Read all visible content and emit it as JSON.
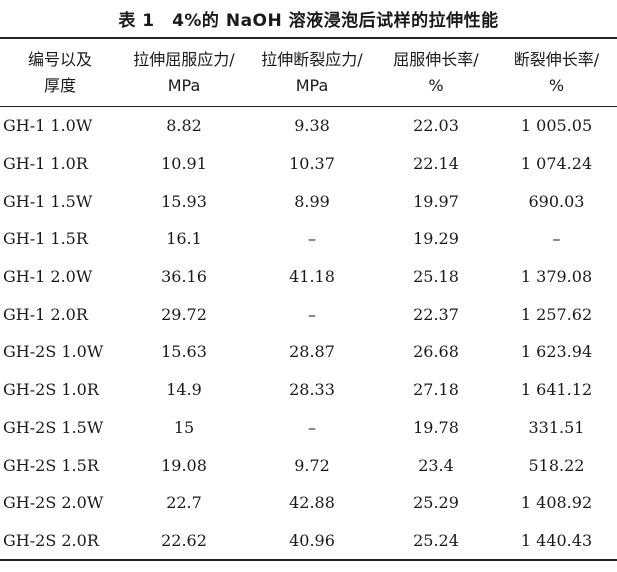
{
  "caption": "表 1　4%的 NaOH 溶液浸泡后试样的拉伸性能",
  "table": {
    "headers": [
      {
        "line1": "编号以及",
        "line2": "厚度"
      },
      {
        "line1": "拉伸屈服应力/",
        "line2": "MPa"
      },
      {
        "line1": "拉伸断裂应力/",
        "line2": "MPa"
      },
      {
        "line1": "屈服伸长率/",
        "line2": "%"
      },
      {
        "line1": "断裂伸长率/",
        "line2": "%"
      }
    ],
    "rows": [
      [
        "GH-1 1.0W",
        "8.82",
        "9.38",
        "22.03",
        "1 005.05"
      ],
      [
        "GH-1 1.0R",
        "10.91",
        "10.37",
        "22.14",
        "1 074.24"
      ],
      [
        "GH-1 1.5W",
        "15.93",
        "8.99",
        "19.97",
        "690.03"
      ],
      [
        "GH-1 1.5R",
        "16.1",
        "–",
        "19.29",
        "–"
      ],
      [
        "GH-1 2.0W",
        "36.16",
        "41.18",
        "25.18",
        "1 379.08"
      ],
      [
        "GH-1 2.0R",
        "29.72",
        "–",
        "22.37",
        "1 257.62"
      ],
      [
        "GH-2S 1.0W",
        "15.63",
        "28.87",
        "26.68",
        "1 623.94"
      ],
      [
        "GH-2S 1.0R",
        "14.9",
        "28.33",
        "27.18",
        "1 641.12"
      ],
      [
        "GH-2S 1.5W",
        "15",
        "–",
        "19.78",
        "331.51"
      ],
      [
        "GH-2S 1.5R",
        "19.08",
        "9.72",
        "23.4",
        "518.22"
      ],
      [
        "GH-2S 2.0W",
        "22.7",
        "42.88",
        "25.29",
        "1 408.92"
      ],
      [
        "GH-2S 2.0R",
        "22.62",
        "40.96",
        "25.24",
        "1 440.43"
      ]
    ]
  }
}
